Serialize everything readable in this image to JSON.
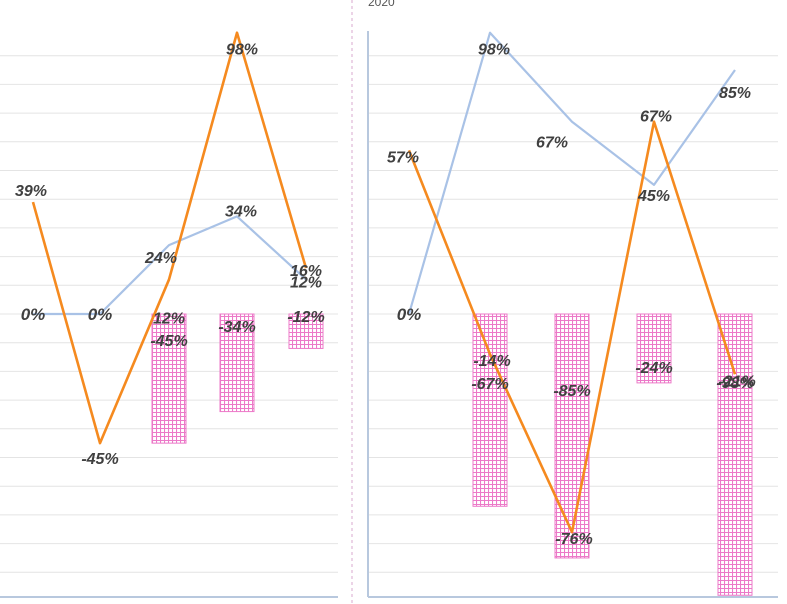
{
  "header": {
    "panel_title": "2020"
  },
  "chart_data": [
    {
      "type": "bar",
      "title": "",
      "ylim": [
        -100,
        100
      ],
      "grid": true,
      "categories": [
        "",
        "",
        "",
        "",
        ""
      ],
      "series": [
        {
          "type": "line",
          "color": "#a9c2e6",
          "values": [
            0,
            0,
            24,
            34,
            12
          ],
          "labels": [
            "0%",
            "0%",
            "24%",
            "34%",
            "12%"
          ]
        },
        {
          "type": "bar",
          "color": "#ec79c8",
          "pattern": "grid",
          "values": [
            null,
            null,
            -45,
            -34,
            -12
          ],
          "labels": [
            "",
            "",
            "-45%",
            "-34%",
            "-12%"
          ]
        },
        {
          "type": "line",
          "color": "#f58a1f",
          "values": [
            39,
            -45,
            12,
            98,
            16
          ],
          "labels": [
            "39%",
            "-45%",
            "12%",
            "98%",
            "16%"
          ]
        }
      ]
    },
    {
      "type": "bar",
      "title": "2020",
      "ylim": [
        -100,
        100
      ],
      "grid": true,
      "categories": [
        "",
        "",
        "",
        "",
        ""
      ],
      "series": [
        {
          "type": "line",
          "color": "#a9c2e6",
          "values": [
            0,
            98,
            67,
            45,
            85
          ],
          "labels": [
            "0%",
            "98%",
            "67%",
            "45%",
            "85%"
          ]
        },
        {
          "type": "bar",
          "color": "#ec79c8",
          "pattern": "grid",
          "values": [
            null,
            -67,
            -85,
            -24,
            -98
          ],
          "labels": [
            "",
            "-67%",
            "-85%",
            "-24%",
            "-98%"
          ]
        },
        {
          "type": "line",
          "color": "#f58a1f",
          "values": [
            57,
            -14,
            -76,
            67,
            -21
          ],
          "labels": [
            "57%",
            "-14%",
            "-76%",
            "67%",
            "-21%"
          ]
        }
      ]
    }
  ]
}
